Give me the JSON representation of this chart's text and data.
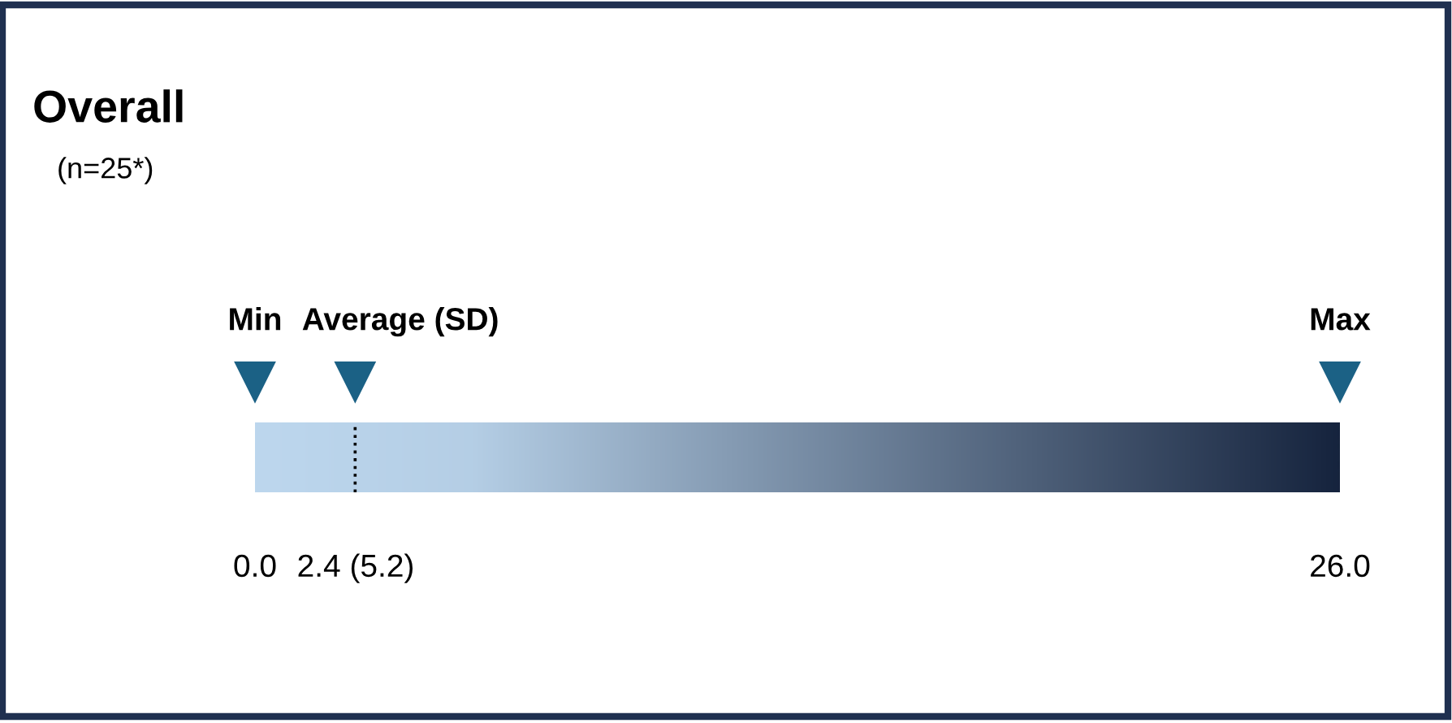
{
  "chart_data": {
    "type": "other",
    "title": "Overall",
    "subtitle": "(n=25*)",
    "categories": [
      "Min",
      "Average (SD)",
      "Max"
    ],
    "values": [
      0.0,
      2.4,
      26.0
    ],
    "value_labels": [
      "0.0",
      "2.4 (5.2)",
      "26.0"
    ],
    "color": "#1b6185"
  }
}
